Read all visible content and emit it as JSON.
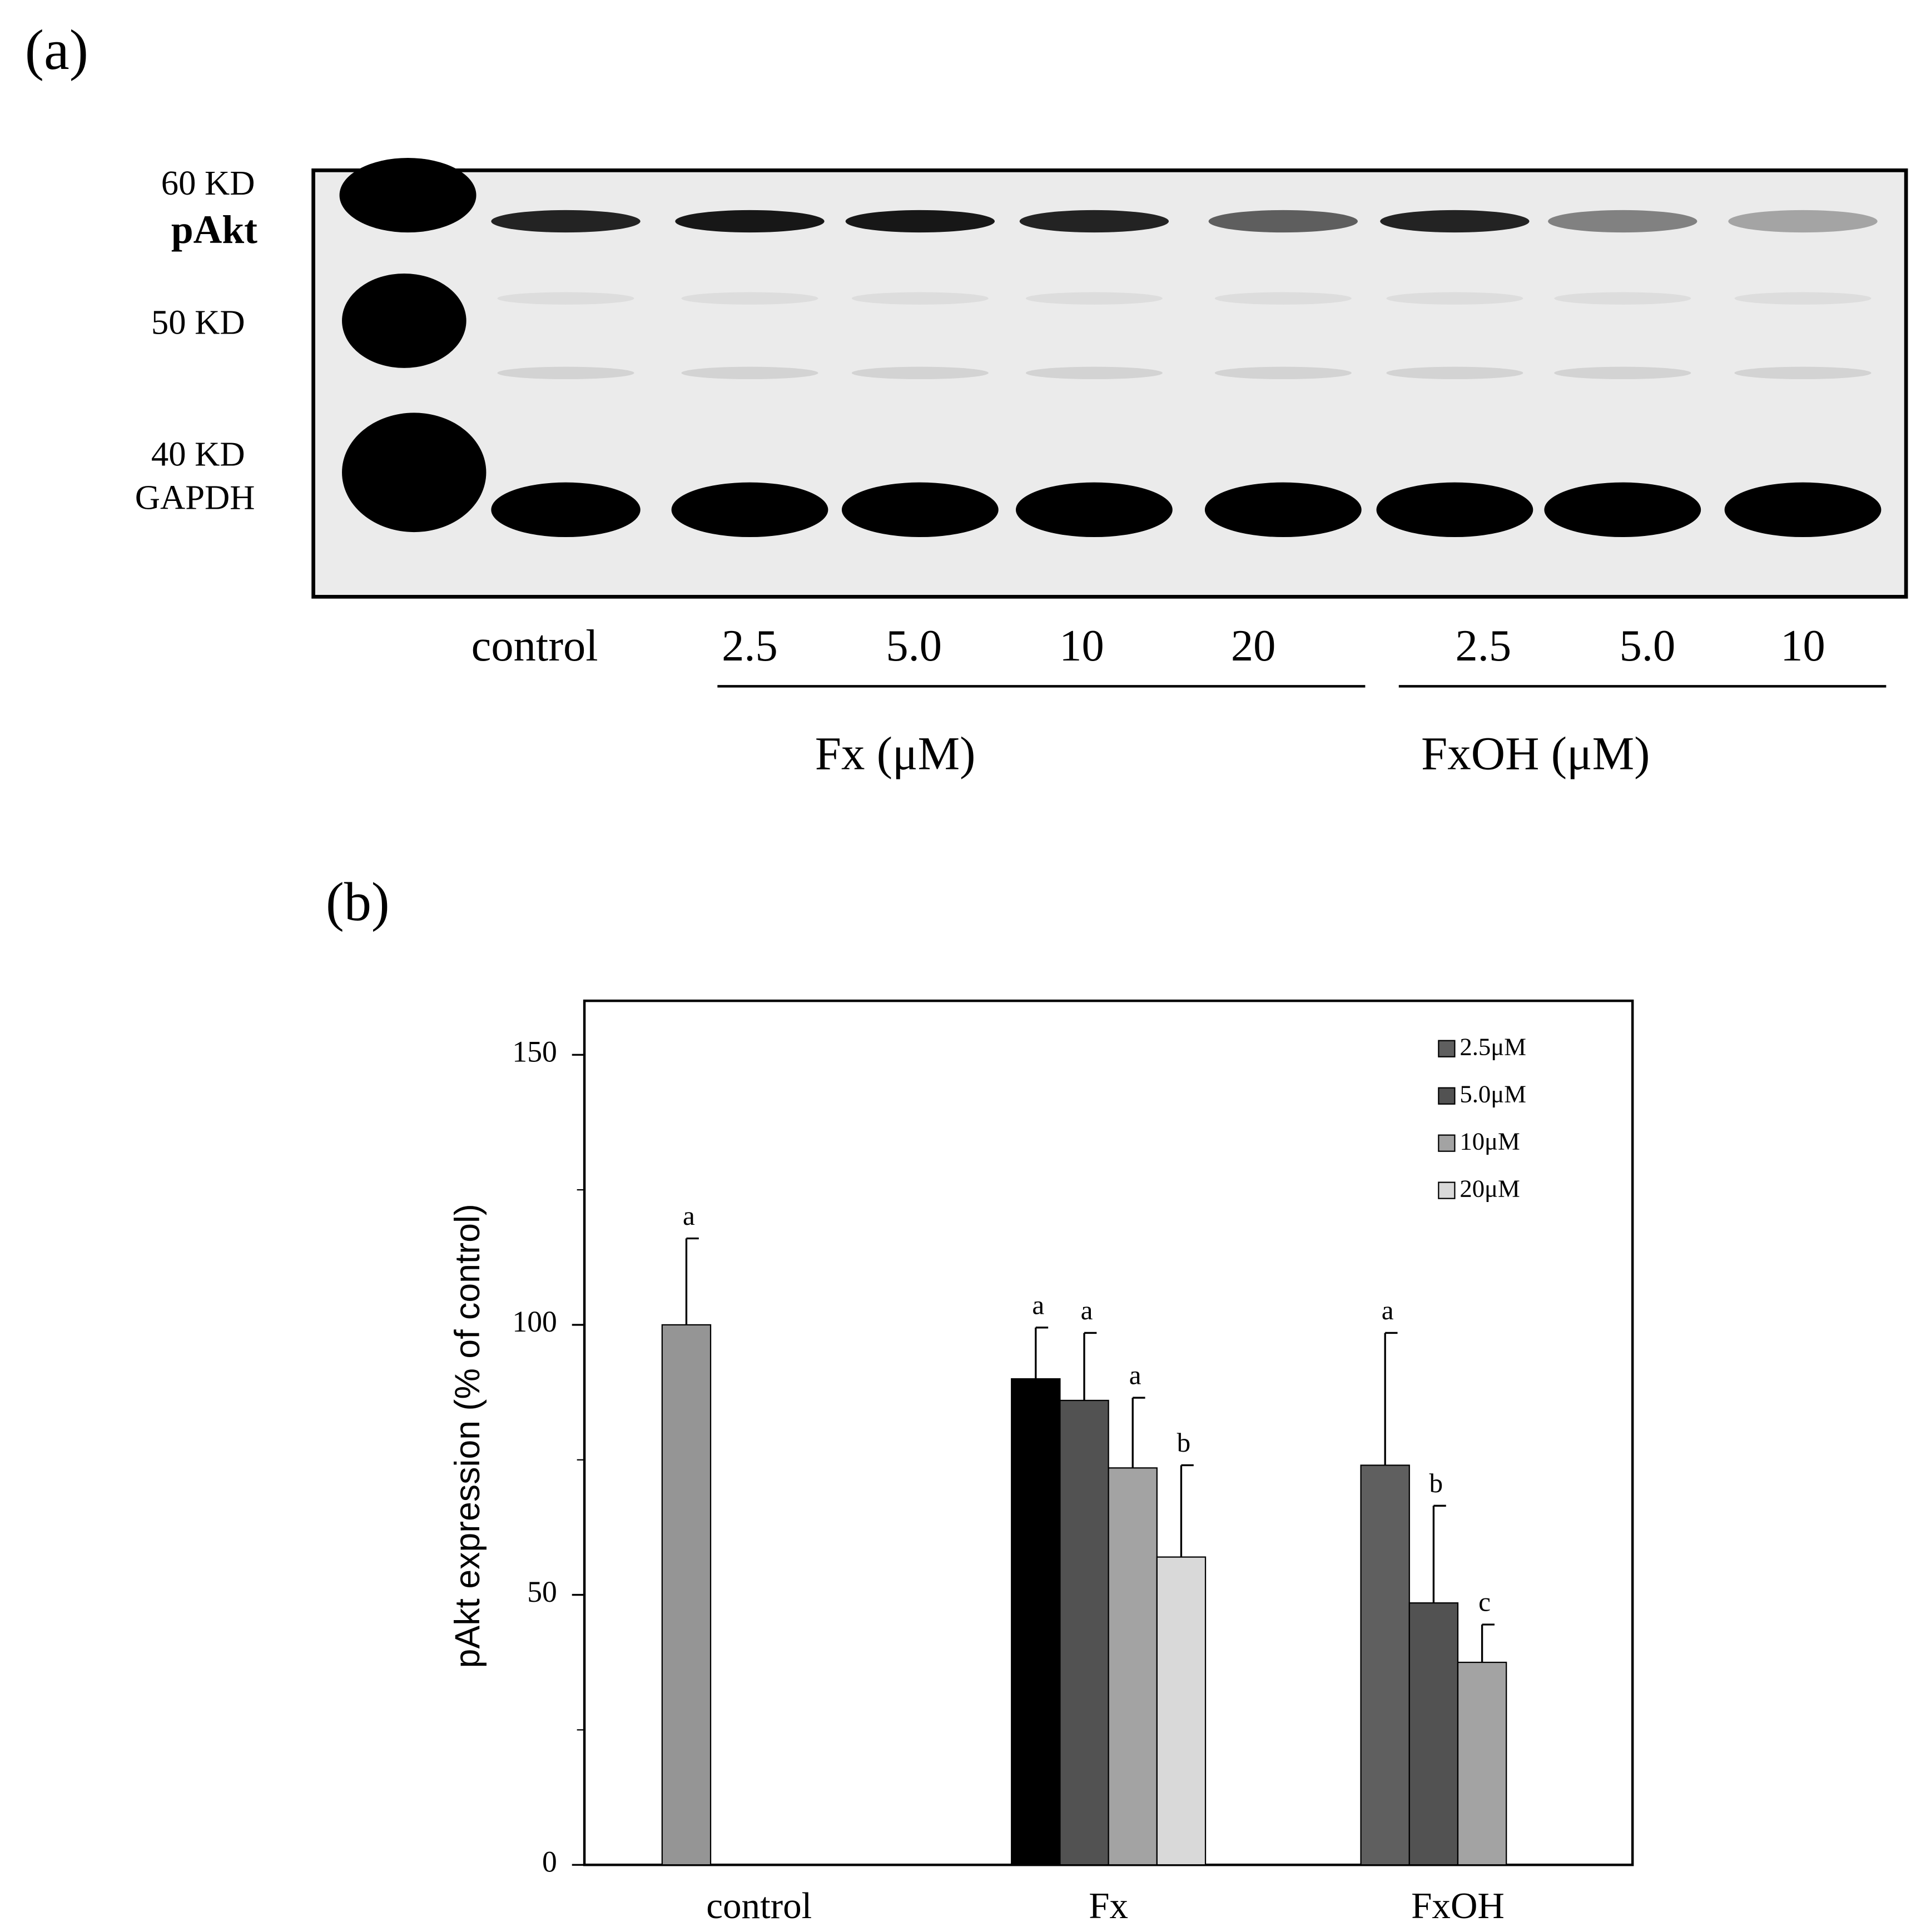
{
  "panel_a": {
    "panel_label": "(a)",
    "markers": [
      "60 KD",
      "pAkt",
      "50 KD",
      "40 KD",
      "GAPDH"
    ],
    "lanes": [
      "control",
      "2.5",
      "5.0",
      "10",
      "20",
      "2.5",
      "5.0",
      "10"
    ],
    "groups": [
      "Fx (μM)",
      "FxOH (μM)"
    ]
  },
  "chart_data": {
    "type": "bar",
    "panel_label": "(b)",
    "y_label": "pAkt expression (% of control)",
    "categories": [
      "control",
      "Fx",
      "FxOH"
    ],
    "ylim": [
      0,
      160
    ],
    "yticks": [
      0,
      50,
      100,
      150
    ],
    "minor_yticks": [
      25,
      75,
      125
    ],
    "series": [
      {
        "name": "2.5μM",
        "color": "#5f5f5f",
        "colors": [
          "#959595",
          "#000000",
          "#5f5f5f"
        ],
        "values": [
          100,
          90,
          74
        ],
        "errors": [
          16,
          9.5,
          24.5
        ],
        "significance": [
          "a",
          "a",
          "a"
        ]
      },
      {
        "name": "5.0μM",
        "color": "#525252",
        "colors": [
          "#525252",
          "#525252",
          "#525252"
        ],
        "values": [
          null,
          86,
          48.5
        ],
        "errors": [
          null,
          12.5,
          18
        ],
        "significance": [
          null,
          "a",
          "b"
        ]
      },
      {
        "name": "10μM",
        "color": "#a3a3a3",
        "colors": [
          "#a3a3a3",
          "#a3a3a3",
          "#a3a3a3"
        ],
        "values": [
          null,
          73.5,
          37.5
        ],
        "errors": [
          null,
          13,
          7
        ],
        "significance": [
          null,
          "a",
          "c"
        ]
      },
      {
        "name": "20μM",
        "color": "#d9d9d9",
        "colors": [
          "#d9d9d9",
          "#d9d9d9",
          "#d9d9d9"
        ],
        "values": [
          null,
          57,
          null
        ],
        "errors": [
          null,
          17,
          null
        ],
        "significance": [
          null,
          "b",
          null
        ]
      }
    ]
  }
}
